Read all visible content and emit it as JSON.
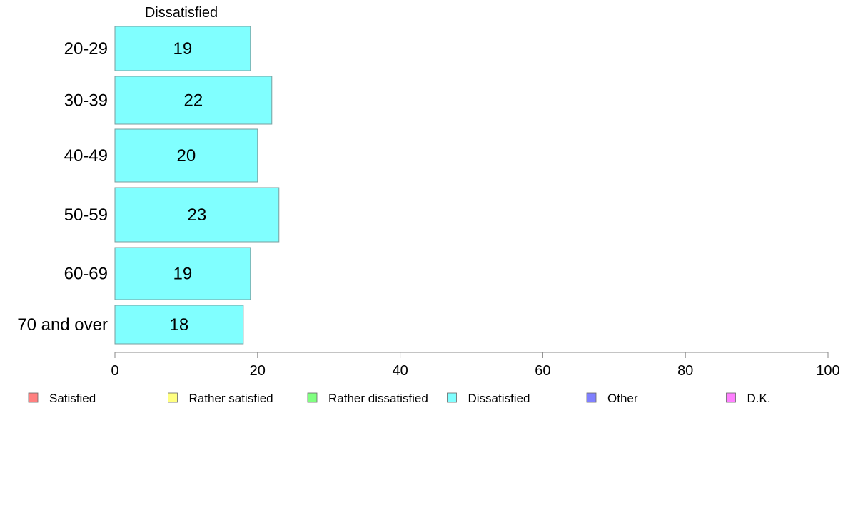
{
  "chart_data": {
    "type": "bar",
    "orientation": "horizontal",
    "series_title": "Dissatisfied",
    "categories": [
      "20-29",
      "30-39",
      "40-49",
      "50-59",
      "60-69",
      "70 and over"
    ],
    "series": [
      {
        "name": "Dissatisfied",
        "values": [
          19,
          22,
          20,
          23,
          19,
          18
        ],
        "color": "#80ffff"
      }
    ],
    "data_labels": [
      "19",
      "22",
      "20",
      "23",
      "19",
      "18"
    ],
    "xlim": [
      0,
      100
    ],
    "xticks": [
      0,
      20,
      40,
      60,
      80,
      100
    ],
    "grid": false,
    "legend": {
      "placement": "bottom",
      "items": [
        {
          "label": "Satisfied",
          "color": "#ff8080"
        },
        {
          "label": "Rather satisfied",
          "color": "#ffff80"
        },
        {
          "label": "Rather dissatisfied",
          "color": "#80ff80"
        },
        {
          "label": "Dissatisfied",
          "color": "#80ffff"
        },
        {
          "label": "Other",
          "color": "#8080ff"
        },
        {
          "label": "D.K.",
          "color": "#ff80ff"
        }
      ]
    }
  }
}
